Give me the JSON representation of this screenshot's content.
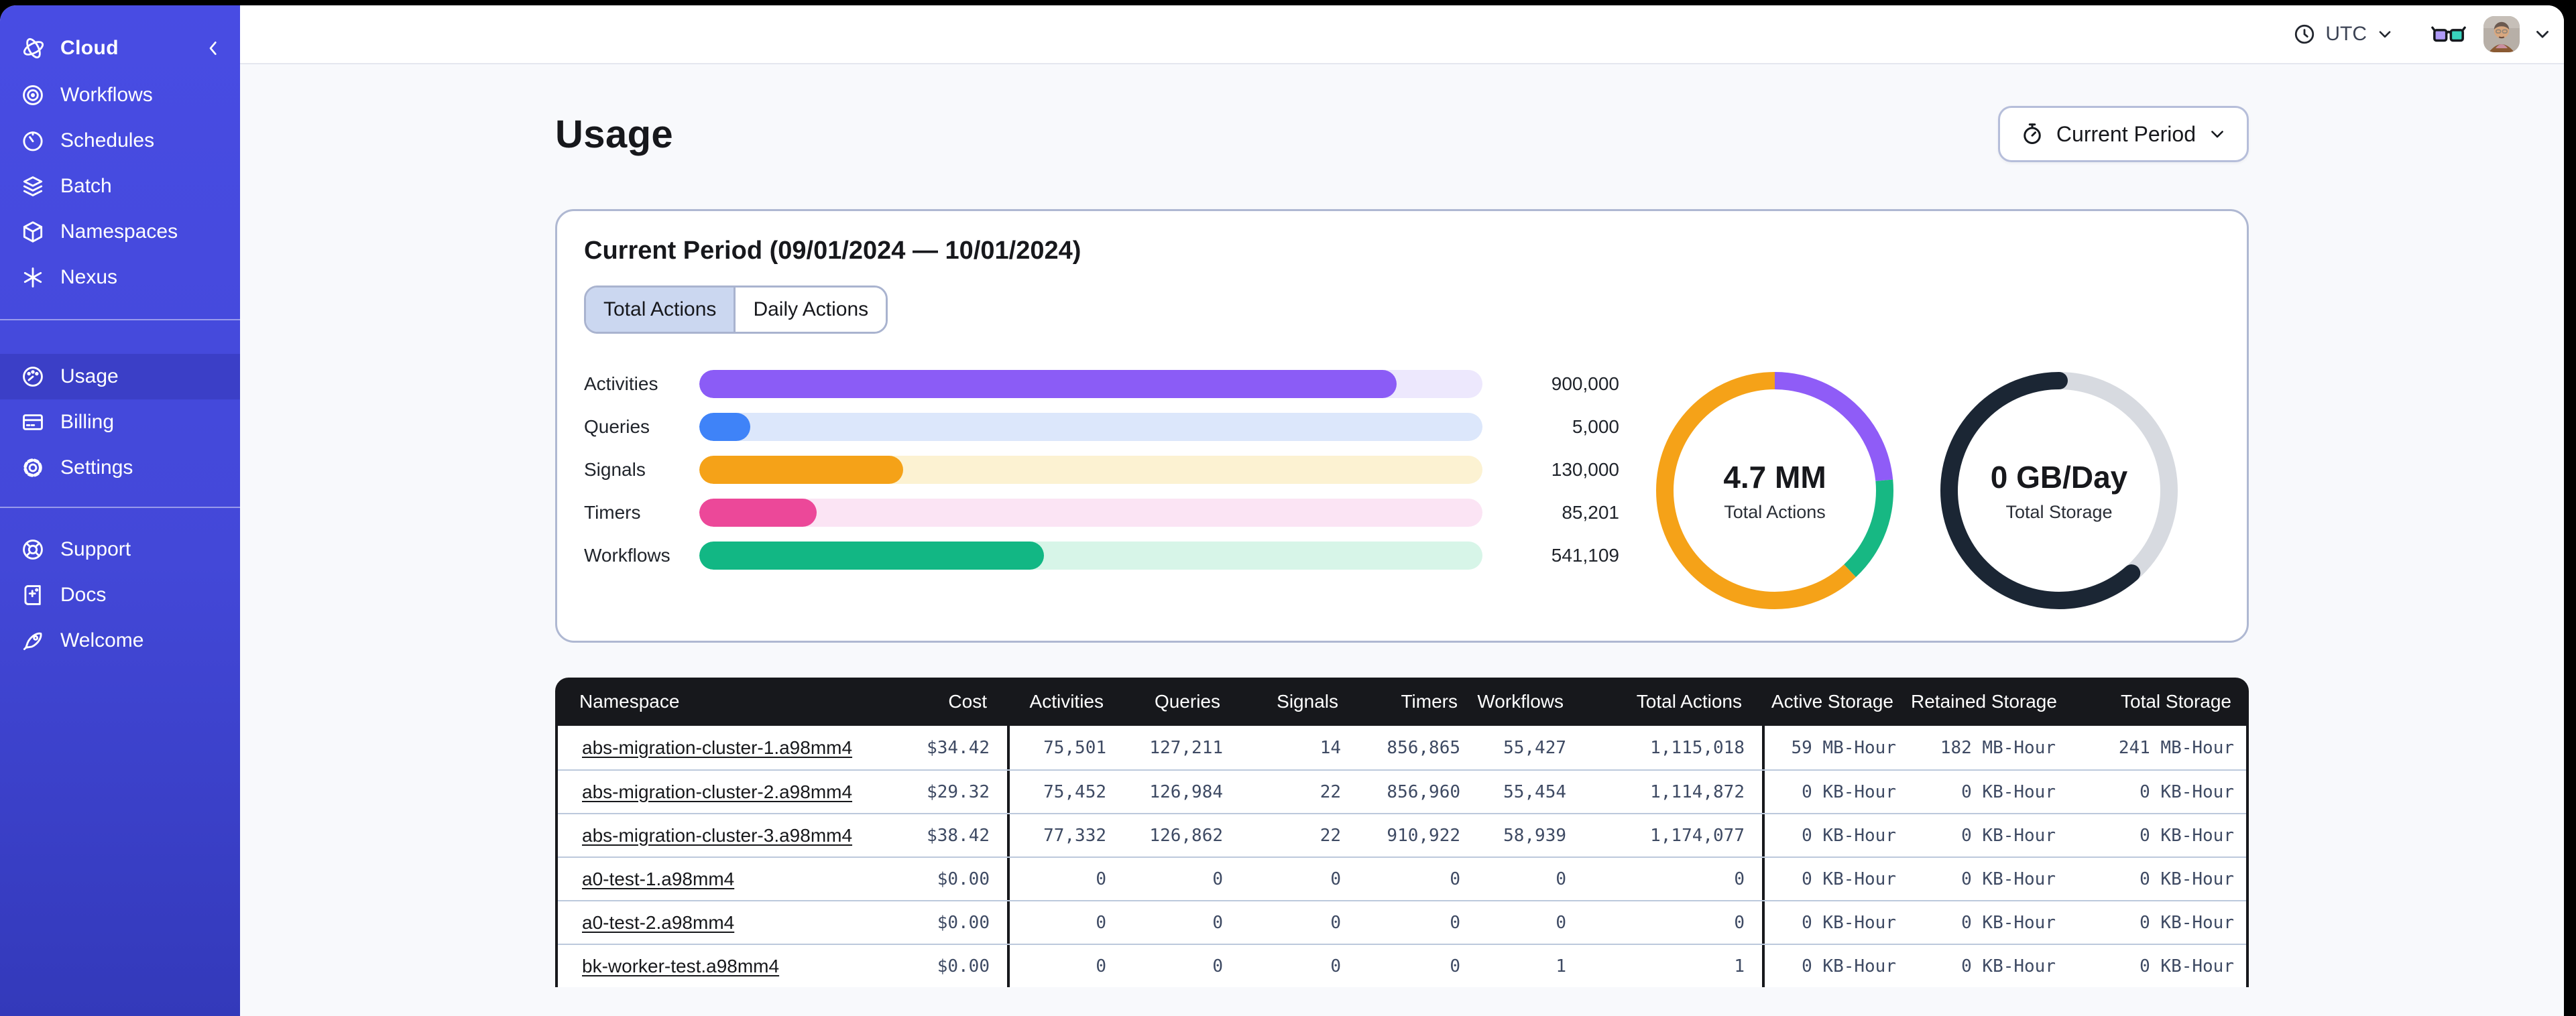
{
  "sidebar": {
    "logo_label": "Cloud",
    "nav": [
      {
        "icon": "workflows-icon",
        "label": "Workflows"
      },
      {
        "icon": "schedules-icon",
        "label": "Schedules"
      },
      {
        "icon": "batch-icon",
        "label": "Batch"
      },
      {
        "icon": "namespaces-icon",
        "label": "Namespaces"
      },
      {
        "icon": "nexus-icon",
        "label": "Nexus"
      }
    ],
    "account_nav": [
      {
        "icon": "usage-icon",
        "label": "Usage",
        "selected": true
      },
      {
        "icon": "billing-icon",
        "label": "Billing"
      },
      {
        "icon": "settings-icon",
        "label": "Settings"
      }
    ],
    "footer_nav": [
      {
        "icon": "support-icon",
        "label": "Support"
      },
      {
        "icon": "docs-icon",
        "label": "Docs"
      },
      {
        "icon": "welcome-icon",
        "label": "Welcome"
      }
    ]
  },
  "topbar": {
    "timezone": "UTC"
  },
  "page": {
    "title": "Usage",
    "period_button_label": "Current Period",
    "card_title": "Current Period (09/01/2024 — 10/01/2024)",
    "tabs": [
      {
        "label": "Total Actions",
        "active": true
      },
      {
        "label": "Daily Actions",
        "active": false
      }
    ]
  },
  "chart_data": [
    {
      "type": "bar",
      "orientation": "horizontal",
      "categories": [
        "Activities",
        "Queries",
        "Signals",
        "Timers",
        "Workflows"
      ],
      "values": [
        900000,
        5000,
        130000,
        85201,
        541109
      ],
      "value_labels": [
        "900,000",
        "5,000",
        "130,000",
        "85,201",
        "541,109"
      ],
      "fill_percents": [
        89,
        6.5,
        26,
        15,
        44
      ],
      "bar_colors": [
        "#8B5CF6",
        "#3F83F8",
        "#F5A218",
        "#EC4899",
        "#12B784"
      ],
      "track_colors": [
        "#EDE8FD",
        "#DCE7FB",
        "#FCF2D2",
        "#FBE4F4",
        "#D7F5E8"
      ]
    },
    {
      "type": "donut",
      "center_value": "4.7 MM",
      "center_label": "Total Actions",
      "segments": [
        {
          "name": "activities",
          "color": "#8F5CF7",
          "percent": 23.5
        },
        {
          "name": "workflows",
          "color": "#17B883",
          "percent": 14.5
        },
        {
          "name": "other",
          "color": "#F5A218",
          "percent": 62
        }
      ]
    },
    {
      "type": "donut",
      "center_value": "0 GB/Day",
      "center_label": "Total Storage",
      "segments": [
        {
          "name": "retained",
          "color": "#D7DAE0",
          "percent": 38.5
        },
        {
          "name": "active",
          "color": "#1B2634",
          "percent": 61.5,
          "cap": "round"
        }
      ]
    }
  ],
  "table": {
    "columns": [
      "Namespace",
      "Cost",
      "Activities",
      "Queries",
      "Signals",
      "Timers",
      "Workflows",
      "Total Actions",
      "Active Storage",
      "Retained Storage",
      "Total Storage"
    ],
    "rows": [
      [
        "abs-migration-cluster-1.a98mm4",
        "$34.42",
        "75,501",
        "127,211",
        "14",
        "856,865",
        "55,427",
        "1,115,018",
        "59 MB-Hour",
        "182 MB-Hour",
        "241 MB-Hour"
      ],
      [
        "abs-migration-cluster-2.a98mm4",
        "$29.32",
        "75,452",
        "126,984",
        "22",
        "856,960",
        "55,454",
        "1,114,872",
        "0 KB-Hour",
        "0 KB-Hour",
        "0 KB-Hour"
      ],
      [
        "abs-migration-cluster-3.a98mm4",
        "$38.42",
        "77,332",
        "126,862",
        "22",
        "910,922",
        "58,939",
        "1,174,077",
        "0 KB-Hour",
        "0 KB-Hour",
        "0 KB-Hour"
      ],
      [
        "a0-test-1.a98mm4",
        "$0.00",
        "0",
        "0",
        "0",
        "0",
        "0",
        "0",
        "0 KB-Hour",
        "0 KB-Hour",
        "0 KB-Hour"
      ],
      [
        "a0-test-2.a98mm4",
        "$0.00",
        "0",
        "0",
        "0",
        "0",
        "0",
        "0",
        "0 KB-Hour",
        "0 KB-Hour",
        "0 KB-Hour"
      ],
      [
        "bk-worker-test.a98mm4",
        "$0.00",
        "0",
        "0",
        "0",
        "0",
        "1",
        "1",
        "0 KB-Hour",
        "0 KB-Hour",
        "0 KB-Hour"
      ]
    ]
  }
}
